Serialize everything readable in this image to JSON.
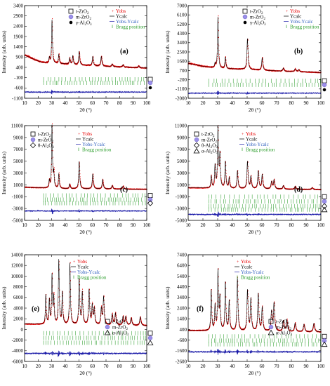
{
  "chart_data": [
    {
      "id": "a",
      "type": "line",
      "panel_label": "(a)",
      "xlabel": "2θ (°)",
      "ylabel": "Intensity (arb. units)",
      "xlim": [
        10,
        100
      ],
      "ylim": [
        -1100,
        3400
      ],
      "xticks": [
        10,
        20,
        30,
        40,
        50,
        60,
        70,
        80,
        90,
        100
      ],
      "yticks": [
        -1100,
        -600,
        -100,
        400,
        900,
        1400,
        1900,
        2400,
        2900,
        3400
      ],
      "legend": [
        "t-ZrO2",
        "m-ZrO2",
        "γ-Al2O3",
        "Yobs",
        "Ycalc",
        "Yobs-Ycalc",
        "Bragg position"
      ],
      "background": [
        [
          10,
          1000
        ],
        [
          14,
          880
        ],
        [
          18,
          760
        ],
        [
          22,
          660
        ],
        [
          26,
          620
        ],
        [
          40,
          560
        ],
        [
          60,
          480
        ],
        [
          80,
          420
        ],
        [
          100,
          360
        ]
      ],
      "peaks": [
        [
          28.2,
          250
        ],
        [
          30.2,
          2100
        ],
        [
          35.2,
          450
        ],
        [
          43.2,
          300
        ],
        [
          45.5,
          420
        ],
        [
          50.2,
          650
        ],
        [
          60.2,
          450
        ],
        [
          66.5,
          470
        ],
        [
          74.5,
          130
        ],
        [
          82.5,
          120
        ],
        [
          94,
          90
        ]
      ],
      "residual_offset": -800,
      "bragg_rows": [
        -180,
        -350
      ]
    },
    {
      "id": "b",
      "type": "line",
      "panel_label": "(b)",
      "xlabel": "2θ (°)",
      "ylabel": "Intensity (arb. units)",
      "xlim": [
        10,
        100
      ],
      "ylim": [
        -2000,
        7000
      ],
      "yticks": [
        -2000,
        -1100,
        -200,
        700,
        1600,
        2500,
        3400,
        4300,
        5200,
        6100,
        7000
      ],
      "xticks": [
        10,
        20,
        30,
        40,
        50,
        60,
        70,
        80,
        90,
        100
      ],
      "legend": [
        "t-ZrO2",
        "m-ZrO2",
        "γ-Al2O3",
        "Yobs",
        "Ycalc",
        "Yobs-Ycalc",
        "Bragg position"
      ],
      "background": [
        [
          10,
          1400
        ],
        [
          20,
          1100
        ],
        [
          30,
          900
        ],
        [
          50,
          800
        ],
        [
          70,
          650
        ],
        [
          100,
          500
        ]
      ],
      "peaks": [
        [
          28.2,
          400
        ],
        [
          30.2,
          5000
        ],
        [
          35.2,
          1100
        ],
        [
          50.2,
          3000
        ],
        [
          60.2,
          1200
        ],
        [
          74.5,
          300
        ],
        [
          82.5,
          250
        ],
        [
          85,
          200
        ]
      ],
      "residual_offset": -1500,
      "bragg_rows": [
        -300,
        -700
      ]
    },
    {
      "id": "c",
      "type": "line",
      "panel_label": "(c)",
      "xlabel": "2θ (°)",
      "ylabel": "Intensity (arb. units)",
      "xlim": [
        10,
        100
      ],
      "ylim": [
        -5000,
        11000
      ],
      "yticks": [
        -5000,
        -3000,
        -1000,
        1000,
        3000,
        5000,
        7000,
        9000,
        11000
      ],
      "xticks": [
        10,
        20,
        30,
        40,
        50,
        60,
        70,
        80,
        90,
        100
      ],
      "legend": [
        "t-ZrO2",
        "m-ZrO2",
        "θ-Al2O3",
        "Yobs",
        "Ycalc",
        "Yobs-Ycalc",
        "Bragg position"
      ],
      "background": [
        [
          10,
          600
        ],
        [
          20,
          500
        ],
        [
          40,
          350
        ],
        [
          70,
          300
        ],
        [
          100,
          250
        ]
      ],
      "peaks": [
        [
          28.2,
          1200
        ],
        [
          30.2,
          10500
        ],
        [
          31.5,
          2500
        ],
        [
          35.2,
          2400
        ],
        [
          43.2,
          800
        ],
        [
          50.2,
          4600
        ],
        [
          60.2,
          2500
        ],
        [
          67.5,
          1600
        ],
        [
          74.5,
          600
        ],
        [
          82.5,
          500
        ]
      ],
      "residual_offset": -3400,
      "bragg_rows": [
        -800,
        -1500,
        -2100
      ]
    },
    {
      "id": "d",
      "type": "line",
      "panel_label": "(d)",
      "xlabel": "2θ (°)",
      "ylabel": "Intensity (arb. units)",
      "xlim": [
        10,
        100
      ],
      "ylim": [
        -5000,
        11000
      ],
      "yticks": [
        -5000,
        -3000,
        -1000,
        1000,
        3000,
        5000,
        7000,
        9000,
        11000
      ],
      "xticks": [
        10,
        20,
        30,
        40,
        50,
        60,
        70,
        80,
        90,
        100
      ],
      "legend": [
        "t-ZrO2",
        "m-ZrO2",
        "θ-Al2O3",
        "α-Al2O3",
        "Yobs",
        "Ycalc",
        "Yobs-Ycalc",
        "Bragg position"
      ],
      "background": [
        [
          10,
          500
        ],
        [
          30,
          400
        ],
        [
          60,
          300
        ],
        [
          100,
          200
        ]
      ],
      "peaks": [
        [
          25.6,
          2000
        ],
        [
          28.2,
          3800
        ],
        [
          30.2,
          10000
        ],
        [
          31.5,
          5500
        ],
        [
          35.2,
          4500
        ],
        [
          37.8,
          1800
        ],
        [
          43.4,
          3000
        ],
        [
          50.2,
          4600
        ],
        [
          52.5,
          2000
        ],
        [
          57.5,
          3000
        ],
        [
          60.2,
          2400
        ],
        [
          66.5,
          1200
        ],
        [
          68.2,
          1500
        ],
        [
          74.5,
          600
        ],
        [
          82.5,
          500
        ],
        [
          94,
          300
        ]
      ],
      "residual_offset": -4000,
      "bragg_rows": [
        -1000,
        -1800,
        -2600,
        -3200
      ]
    },
    {
      "id": "e",
      "type": "line",
      "panel_label": "(e)",
      "xlabel": "2θ (°)",
      "ylabel": "Intensity (arb. units)",
      "xlim": [
        10,
        100
      ],
      "ylim": [
        -6000,
        14000
      ],
      "yticks": [
        -6000,
        -4000,
        -2000,
        0,
        2000,
        4000,
        6000,
        8000,
        10000,
        12000,
        14000
      ],
      "xticks": [
        10,
        20,
        30,
        40,
        50,
        60,
        70,
        80,
        90,
        100
      ],
      "legend": [
        "Yobs",
        "Ycalc",
        "Yobs-Ycalc",
        "Bragg position",
        "t-ZrO2",
        "m-ZrO2",
        "α-Al2O3"
      ],
      "background": [
        [
          10,
          1000
        ],
        [
          30,
          900
        ],
        [
          60,
          800
        ],
        [
          100,
          700
        ]
      ],
      "peaks": [
        [
          25.6,
          5500
        ],
        [
          28.2,
          4500
        ],
        [
          30.2,
          9000
        ],
        [
          31.5,
          5000
        ],
        [
          35.2,
          12000
        ],
        [
          37.8,
          6000
        ],
        [
          43.4,
          11500
        ],
        [
          50.2,
          8500
        ],
        [
          52.5,
          6000
        ],
        [
          57.5,
          6500
        ],
        [
          59.8,
          3500
        ],
        [
          61.3,
          3000
        ],
        [
          66.5,
          3000
        ],
        [
          68.2,
          5200
        ],
        [
          74.5,
          2000
        ],
        [
          76.9,
          2200
        ],
        [
          82.5,
          1600
        ],
        [
          84.5,
          1600
        ],
        [
          88.5,
          1400
        ],
        [
          95.2,
          1600
        ]
      ],
      "residual_offset": -4500,
      "bragg_rows": [
        -700,
        -1600,
        -2500
      ]
    },
    {
      "id": "f",
      "type": "line",
      "panel_label": "(f)",
      "xlabel": "2θ (°)",
      "ylabel": "Intensity (arb. units)",
      "xlim": [
        10,
        100
      ],
      "ylim": [
        -2600,
        7400
      ],
      "yticks": [
        -2600,
        -1600,
        -600,
        400,
        1400,
        2400,
        3400,
        4400,
        5400,
        6400,
        7400
      ],
      "xticks": [
        10,
        20,
        30,
        40,
        50,
        60,
        70,
        80,
        90,
        100
      ],
      "legend": [
        "Yobs",
        "Ycalc",
        "Yobs-Ycalc",
        "Bragg position",
        "t-ZrO2",
        "m-ZrO2",
        "α-Al2O3"
      ],
      "background": [
        [
          10,
          300
        ],
        [
          30,
          250
        ],
        [
          60,
          200
        ],
        [
          100,
          150
        ]
      ],
      "peaks": [
        [
          25.6,
          3800
        ],
        [
          28.2,
          2300
        ],
        [
          30.2,
          5500
        ],
        [
          31.5,
          3000
        ],
        [
          35.2,
          4500
        ],
        [
          37.8,
          2800
        ],
        [
          43.4,
          5000
        ],
        [
          50.2,
          3800
        ],
        [
          52.5,
          3000
        ],
        [
          57.5,
          3500
        ],
        [
          60.2,
          2200
        ],
        [
          66.5,
          1800
        ],
        [
          68.2,
          2600
        ],
        [
          74.5,
          1000
        ],
        [
          76.9,
          1100
        ],
        [
          82.5,
          800
        ],
        [
          88.5,
          700
        ],
        [
          95.2,
          800
        ]
      ],
      "residual_offset": -1700,
      "bragg_rows": [
        -250,
        -650,
        -1000
      ]
    }
  ],
  "colors": {
    "yobs": "#e60000",
    "ycalc": "#000000",
    "diff": "#1a1aa8",
    "bragg": "#2e9e2e",
    "yobs_label": "#e60000",
    "diff_label": "#2f5fbf",
    "bragg_label": "#2e9e2e"
  }
}
